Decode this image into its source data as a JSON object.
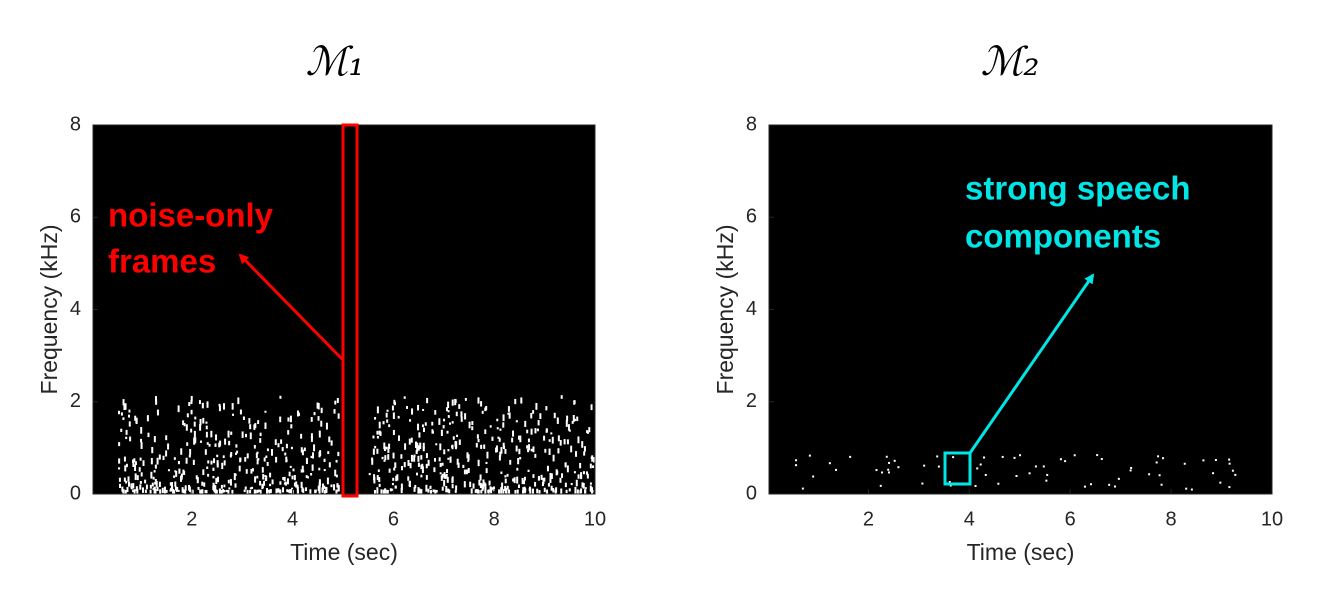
{
  "chart_data": [
    {
      "type": "spectrogram",
      "title": "ℳ₁",
      "xlabel": "Time (sec)",
      "ylabel": "Frequency (kHz)",
      "xlim": [
        0,
        10
      ],
      "xticks": [
        2,
        4,
        6,
        8,
        10
      ],
      "ylim": [
        0,
        8
      ],
      "yticks": [
        0,
        2,
        4,
        6,
        8
      ],
      "annotation": {
        "lines": [
          "noise-only",
          "frames"
        ],
        "color": "#ff0000"
      }
    },
    {
      "type": "spectrogram",
      "title": "ℳ₂",
      "xlabel": "Time (sec)",
      "ylabel": "Frequency (kHz)",
      "xlim": [
        0,
        10
      ],
      "xticks": [
        2,
        4,
        6,
        8,
        10
      ],
      "ylim": [
        0,
        8
      ],
      "yticks": [
        0,
        2,
        4,
        6,
        8
      ],
      "annotation": {
        "lines": [
          "strong speech",
          "components"
        ],
        "color": "#00e5e5"
      }
    }
  ]
}
